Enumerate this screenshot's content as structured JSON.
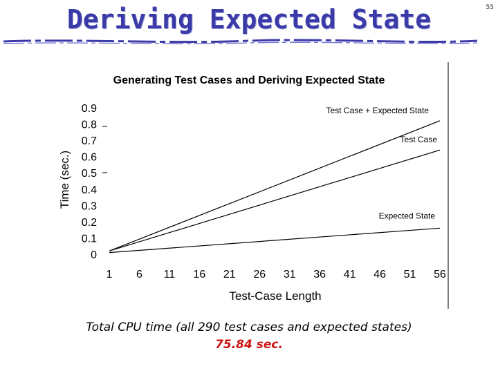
{
  "slide": {
    "title": "Deriving Expected State",
    "page_number": "55",
    "accent_color": "#3a3aa8",
    "rule_color": "#3a3aa8"
  },
  "caption": {
    "line1": "Total CPU time (all 290 test cases and expected states)",
    "line2": "75.84 sec.",
    "line2_color": "#cc1111"
  },
  "chart_data": {
    "type": "line",
    "title": "Generating Test Cases and Deriving Expected State",
    "xlabel": "Test-Case Length",
    "ylabel": "Time (sec.)",
    "x_ticks": [
      1,
      6,
      11,
      16,
      21,
      26,
      31,
      36,
      41,
      46,
      51,
      56
    ],
    "y_ticks": [
      "0",
      "0.1",
      "0.2",
      "0.3",
      "0.4",
      "0.5",
      "0.6",
      "0.7",
      "0.8",
      "0.9"
    ],
    "xlim": [
      1,
      56
    ],
    "ylim": [
      0,
      0.9
    ],
    "grid": false,
    "series": [
      {
        "name": "Test Case + Expected State",
        "x": [
          1,
          56
        ],
        "y": [
          0.02,
          0.82
        ]
      },
      {
        "name": "Test Case",
        "x": [
          1,
          56
        ],
        "y": [
          0.02,
          0.64
        ]
      },
      {
        "name": "Expected State",
        "x": [
          1,
          56
        ],
        "y": [
          0.01,
          0.16
        ]
      }
    ]
  }
}
